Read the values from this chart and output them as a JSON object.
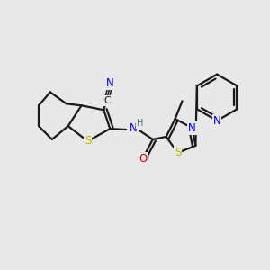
{
  "bg_color": "#e8e8e8",
  "bond_color": "#1a1a1a",
  "colors": {
    "S": "#b8b800",
    "N": "#0000ee",
    "O": "#dd0000",
    "C": "#1a1a1a",
    "H": "#4a7a7a"
  },
  "lw": 1.6,
  "fs": 8.5
}
